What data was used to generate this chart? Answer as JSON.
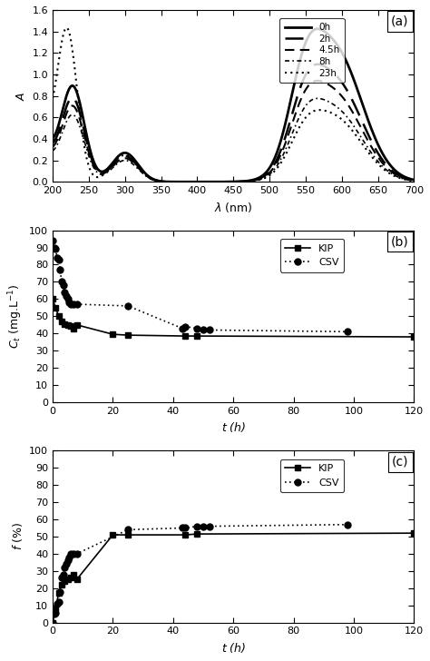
{
  "panel_a": {
    "title": "(a)",
    "xlabel": "λ (nm)",
    "ylabel": "A",
    "xlim": [
      200,
      700
    ],
    "ylim": [
      0.0,
      1.6
    ],
    "yticks": [
      0.0,
      0.2,
      0.4,
      0.6,
      0.8,
      1.0,
      1.2,
      1.4,
      1.6
    ],
    "xticks": [
      200,
      250,
      300,
      350,
      400,
      450,
      500,
      550,
      600,
      650,
      700
    ],
    "curves": [
      {
        "label": "0h",
        "lw": 2.0,
        "ls": "solid",
        "uv_peak_x": 228,
        "uv_peak_y": 0.86,
        "uv_sigma": 16,
        "uv2_peak_x": 300,
        "uv2_peak_y": 0.27,
        "uv2_sigma": 18,
        "vis_peak_x": 590,
        "vis_peak_y": 1.21,
        "vis_sigma": 38,
        "sho_peak_x": 548,
        "sho_ratio": 0.5,
        "bg_amp": 0.22,
        "bg_tau": 15
      },
      {
        "label": "2h",
        "lw": 1.8,
        "ls": "long_dash",
        "uv_peak_x": 228,
        "uv_peak_y": 0.75,
        "uv_sigma": 16,
        "uv2_peak_x": 300,
        "uv2_peak_y": 0.24,
        "uv2_sigma": 18,
        "vis_peak_x": 590,
        "vis_peak_y": 0.93,
        "vis_sigma": 38,
        "sho_peak_x": 548,
        "sho_ratio": 0.5,
        "bg_amp": 0.2,
        "bg_tau": 15
      },
      {
        "label": "4.5h",
        "lw": 1.5,
        "ls": "medium_dash",
        "uv_peak_x": 228,
        "uv_peak_y": 0.68,
        "uv_sigma": 16,
        "uv2_peak_x": 300,
        "uv2_peak_y": 0.22,
        "uv2_sigma": 18,
        "vis_peak_x": 590,
        "vis_peak_y": 0.8,
        "vis_sigma": 38,
        "sho_peak_x": 548,
        "sho_ratio": 0.5,
        "bg_amp": 0.18,
        "bg_tau": 15
      },
      {
        "label": "8h",
        "lw": 1.2,
        "ls": "short_dash",
        "uv_peak_x": 228,
        "uv_peak_y": 0.6,
        "uv_sigma": 16,
        "uv2_peak_x": 300,
        "uv2_peak_y": 0.2,
        "uv2_sigma": 18,
        "vis_peak_x": 590,
        "vis_peak_y": 0.66,
        "vis_sigma": 38,
        "sho_peak_x": 548,
        "sho_ratio": 0.5,
        "bg_amp": 0.16,
        "bg_tau": 15
      },
      {
        "label": "23h",
        "lw": 1.5,
        "ls": "dotted",
        "uv_peak_x": 220,
        "uv_peak_y": 1.38,
        "uv_sigma": 14,
        "uv2_peak_x": 300,
        "uv2_peak_y": 0.25,
        "uv2_sigma": 18,
        "vis_peak_x": 590,
        "vis_peak_y": 0.585,
        "vis_sigma": 38,
        "sho_peak_x": 548,
        "sho_ratio": 0.45,
        "bg_amp": 0.28,
        "bg_tau": 12
      }
    ]
  },
  "panel_b": {
    "title": "(b)",
    "xlim": [
      0,
      120
    ],
    "ylim": [
      0,
      100
    ],
    "yticks": [
      0,
      10,
      20,
      30,
      40,
      50,
      60,
      70,
      80,
      90,
      100
    ],
    "xticks": [
      0,
      20,
      40,
      60,
      80,
      100,
      120
    ],
    "kip_t": [
      0,
      1,
      2,
      3,
      4,
      5,
      6,
      7,
      8,
      20,
      25,
      44,
      48,
      120
    ],
    "kip_c": [
      60,
      55,
      50,
      47,
      45.5,
      45,
      44.5,
      43,
      45,
      39.5,
      39,
      38.5,
      38.5,
      38
    ],
    "csv_t": [
      0,
      0.5,
      1,
      1.5,
      2,
      2.5,
      3,
      3.5,
      4,
      4.5,
      5,
      5.5,
      6,
      7,
      8,
      25,
      43,
      44,
      48,
      50,
      52,
      98
    ],
    "csv_c": [
      94,
      90,
      89,
      84,
      83,
      77,
      70,
      68,
      64,
      62,
      60,
      58,
      57,
      57,
      57,
      56,
      43,
      44,
      43,
      42,
      42,
      41
    ]
  },
  "panel_c": {
    "title": "(c)",
    "xlim": [
      0,
      120
    ],
    "ylim": [
      0,
      100
    ],
    "yticks": [
      0,
      10,
      20,
      30,
      40,
      50,
      60,
      70,
      80,
      90,
      100
    ],
    "xticks": [
      0,
      20,
      40,
      60,
      80,
      100,
      120
    ],
    "kip_t": [
      0,
      1,
      2,
      3,
      4,
      5,
      6,
      7,
      8,
      20,
      25,
      44,
      48,
      120
    ],
    "kip_f": [
      0,
      8,
      17,
      22,
      24,
      25,
      26,
      28,
      25,
      51,
      51,
      51,
      51.5,
      52
    ],
    "csv_t": [
      0,
      0.5,
      1,
      1.5,
      2,
      2.5,
      3,
      3.5,
      4,
      4.5,
      5,
      5.5,
      6,
      7,
      8,
      25,
      43,
      44,
      48,
      50,
      52,
      98
    ],
    "csv_f": [
      0,
      5,
      5.5,
      11,
      12,
      18,
      26,
      28,
      32,
      34,
      36,
      38,
      40,
      40,
      40,
      54,
      55,
      55,
      56,
      56,
      56,
      57
    ]
  }
}
